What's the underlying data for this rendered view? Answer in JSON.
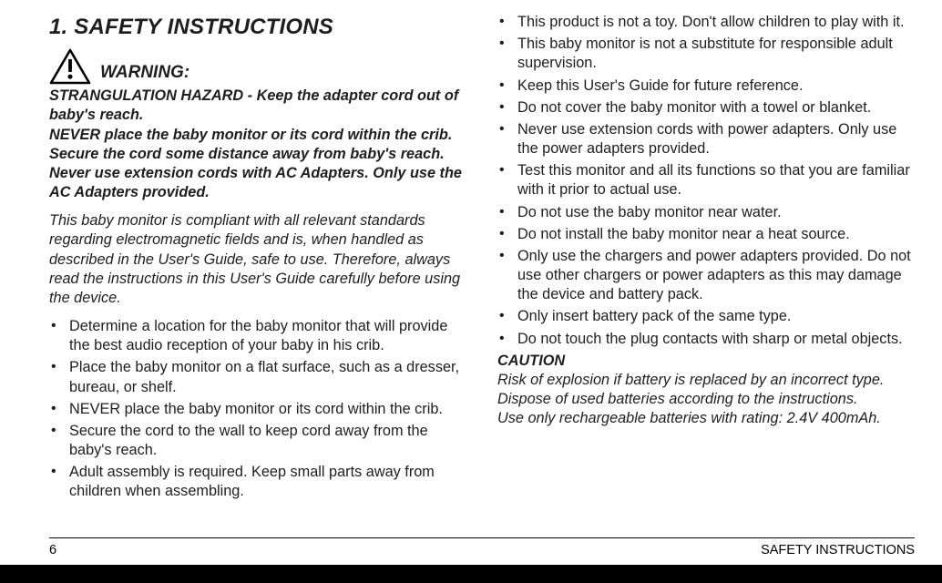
{
  "heading": "1. SAFETY INSTRUCTIONS",
  "warning_label": "WARNING:",
  "warn_block": "STRANGULATION HAZARD - Keep the adapter cord out of baby's reach.\nNEVER place the baby monitor or its cord within the crib. Secure the cord some distance away from baby's reach. Never use extension cords with AC Adapters. Only use the AC Adapters provided.",
  "compliance": "This baby monitor is compliant with all relevant standards regarding electromagnetic fields and is, when handled as described in the User's Guide, safe to use. Therefore, always read the instructions in this User's Guide carefully before using the device.",
  "left_bullets": [
    "Determine a location for the baby monitor that will provide the best audio reception of your baby in his crib.",
    "Place the baby monitor on a flat surface, such as a dresser, bureau, or shelf.",
    "NEVER place the baby monitor or its cord within the crib.",
    "Secure the cord to the wall to keep cord away from the baby's reach.",
    "Adult assembly is required. Keep small parts away from children when assembling."
  ],
  "right_bullets": [
    "This product is not a toy. Don't allow children to play with it.",
    "This baby monitor is not a substitute for responsible adult supervision.",
    "Keep this User's Guide for future reference.",
    "Do not cover the baby monitor with a towel or blanket.",
    "Never use extension cords with power adapters. Only use the power adapters provided.",
    "Test this monitor and all its functions so that you are familiar with it prior to actual use.",
    "Do not use the baby monitor near water.",
    "Do not install the baby monitor near a heat source.",
    "Only use the chargers and power adapters provided. Do not use other chargers or power adapters as this may damage the device and battery pack.",
    "Only insert battery pack of the same type.",
    "Do not touch the plug contacts with sharp or metal objects."
  ],
  "caution_label": "CAUTION",
  "caution_body": "Risk of explosion if battery is replaced by an incorrect type.\nDispose of used batteries according to the instructions.\nUse only rechargeable batteries with rating: 2.4V 400mAh.",
  "footer_page": "6",
  "footer_section": "SAFETY INSTRUCTIONS",
  "icon_stroke": "#000000"
}
